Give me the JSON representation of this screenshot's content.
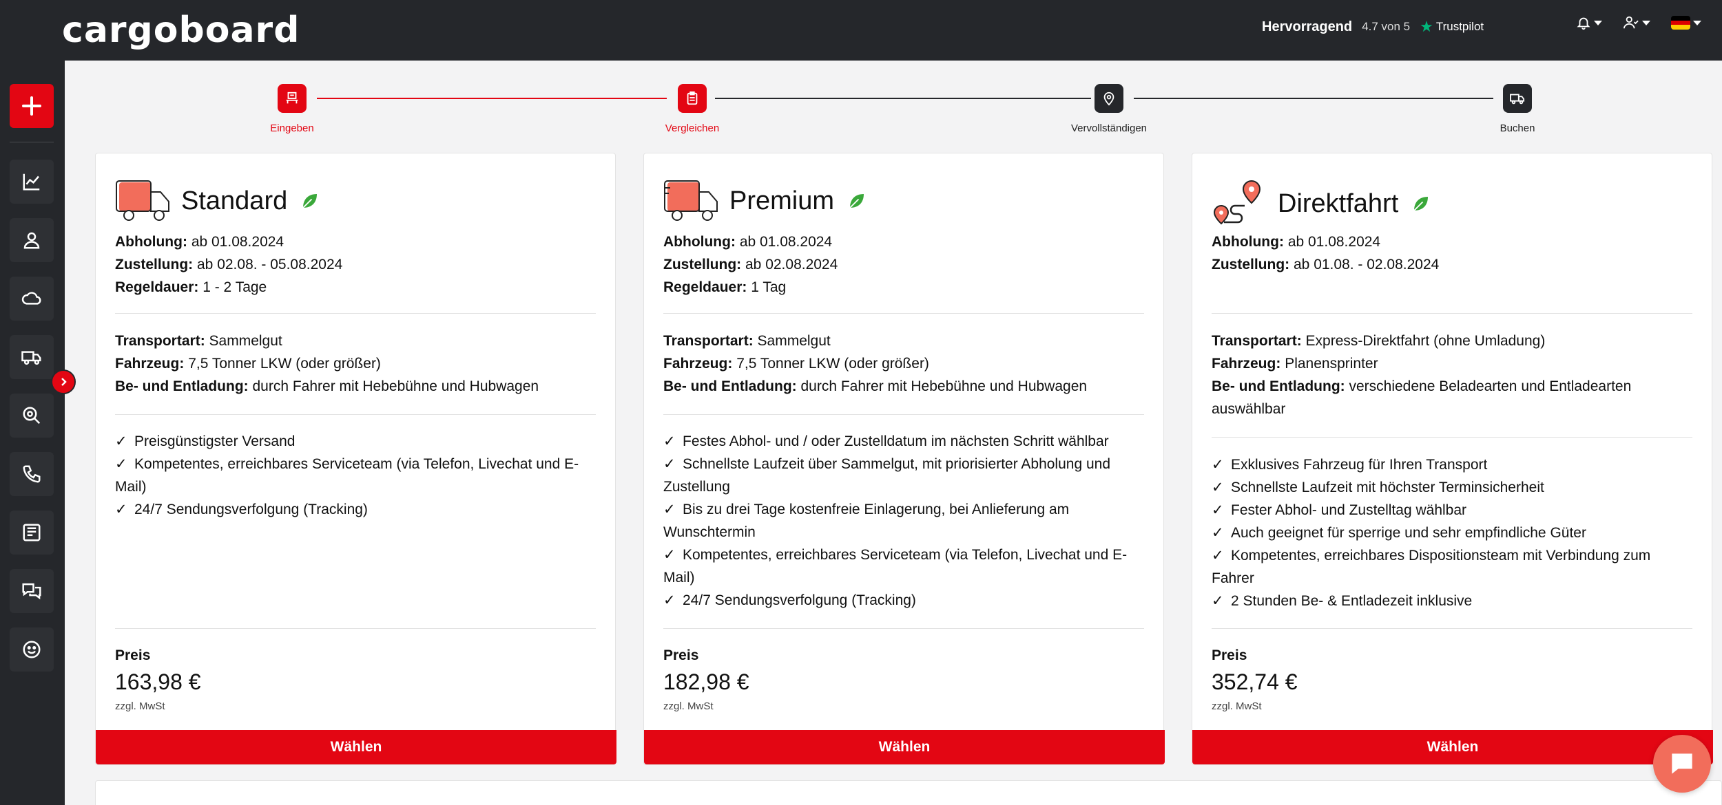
{
  "header": {
    "logo": "cargoboard",
    "trustpilot": {
      "rating_word": "Hervorragend",
      "score": "4.7 von 5",
      "brand": "Trustpilot"
    }
  },
  "colors": {
    "brand_red": "#e30613",
    "dark": "#25272b",
    "leaf_green": "#3aa83a"
  },
  "stepper": [
    {
      "label": "Eingeben",
      "icon": "form-icon",
      "state": "done"
    },
    {
      "label": "Vergleichen",
      "icon": "clipboard-icon",
      "state": "active"
    },
    {
      "label": "Vervollständigen",
      "icon": "location-pin-icon",
      "state": "pending"
    },
    {
      "label": "Buchen",
      "icon": "truck-icon",
      "state": "pending"
    }
  ],
  "cards": [
    {
      "title": "Standard",
      "pickup_label": "Abholung:",
      "pickup_value": "ab 01.08.2024",
      "delivery_label": "Zustellung:",
      "delivery_value": "ab 02.08. - 05.08.2024",
      "duration_label": "Regeldauer:",
      "duration_value": "1 - 2 Tage",
      "transport_label": "Transportart:",
      "transport_value": "Sammelgut",
      "vehicle_label": "Fahrzeug:",
      "vehicle_value": "7,5 Tonner LKW (oder größer)",
      "loading_label": "Be- und Entladung:",
      "loading_value": "durch Fahrer mit Hebebühne und Hubwagen",
      "features": [
        "Preisgünstigster Versand",
        "Kompetentes, erreichbares Serviceteam (via Telefon, Livechat und E-Mail)",
        "24/7 Sendungsverfolgung (Tracking)"
      ],
      "price_label": "Preis",
      "price": "163,98 €",
      "vat": "zzgl. MwSt",
      "button": "Wählen"
    },
    {
      "title": "Premium",
      "pickup_label": "Abholung:",
      "pickup_value": "ab 01.08.2024",
      "delivery_label": "Zustellung:",
      "delivery_value": "ab 02.08.2024",
      "duration_label": "Regeldauer:",
      "duration_value": "1 Tag",
      "transport_label": "Transportart:",
      "transport_value": "Sammelgut",
      "vehicle_label": "Fahrzeug:",
      "vehicle_value": "7,5 Tonner LKW (oder größer)",
      "loading_label": "Be- und Entladung:",
      "loading_value": "durch Fahrer mit Hebebühne und Hubwagen",
      "features": [
        "Festes Abhol- und / oder Zustelldatum im nächsten Schritt wählbar",
        "Schnellste Laufzeit über Sammelgut, mit priorisierter Abholung und Zustellung",
        "Bis zu drei Tage kostenfreie Einlagerung, bei Anlieferung am Wunschtermin",
        "Kompetentes, erreichbares Serviceteam (via Telefon, Livechat und E-Mail)",
        "24/7 Sendungsverfolgung (Tracking)"
      ],
      "price_label": "Preis",
      "price": "182,98 €",
      "vat": "zzgl. MwSt",
      "button": "Wählen"
    },
    {
      "title": "Direktfahrt",
      "pickup_label": "Abholung:",
      "pickup_value": "ab 01.08.2024",
      "delivery_label": "Zustellung:",
      "delivery_value": "ab 01.08. - 02.08.2024",
      "transport_label": "Transportart:",
      "transport_value": "Express-Direktfahrt (ohne Umladung)",
      "vehicle_label": "Fahrzeug:",
      "vehicle_value": "Planensprinter",
      "loading_label": "Be- und Entladung:",
      "loading_value": "verschiedene Beladearten und Entladearten auswählbar",
      "features": [
        "Exklusives Fahrzeug für Ihren Transport",
        "Schnellste Laufzeit mit höchster Terminsicherheit",
        "Fester Abhol- und Zustelltag wählbar",
        "Auch geeignet für sperrige und sehr empfindliche Güter",
        "Kompetentes, erreichbares Dispositionsteam mit Verbindung zum Fahrer",
        "2 Stunden Be- & Entladezeit inklusive"
      ],
      "price_label": "Preis",
      "price": "352,74 €",
      "vat": "zzgl. MwSt",
      "button": "Wählen"
    }
  ],
  "sidebar": {
    "items": [
      {
        "icon": "chart-icon"
      },
      {
        "icon": "user-icon"
      },
      {
        "icon": "cloud-icon"
      },
      {
        "icon": "truck-icon"
      },
      {
        "icon": "search-icon"
      },
      {
        "icon": "phone-icon"
      },
      {
        "icon": "news-icon"
      },
      {
        "icon": "chat-icon"
      },
      {
        "icon": "smiley-icon"
      }
    ]
  }
}
